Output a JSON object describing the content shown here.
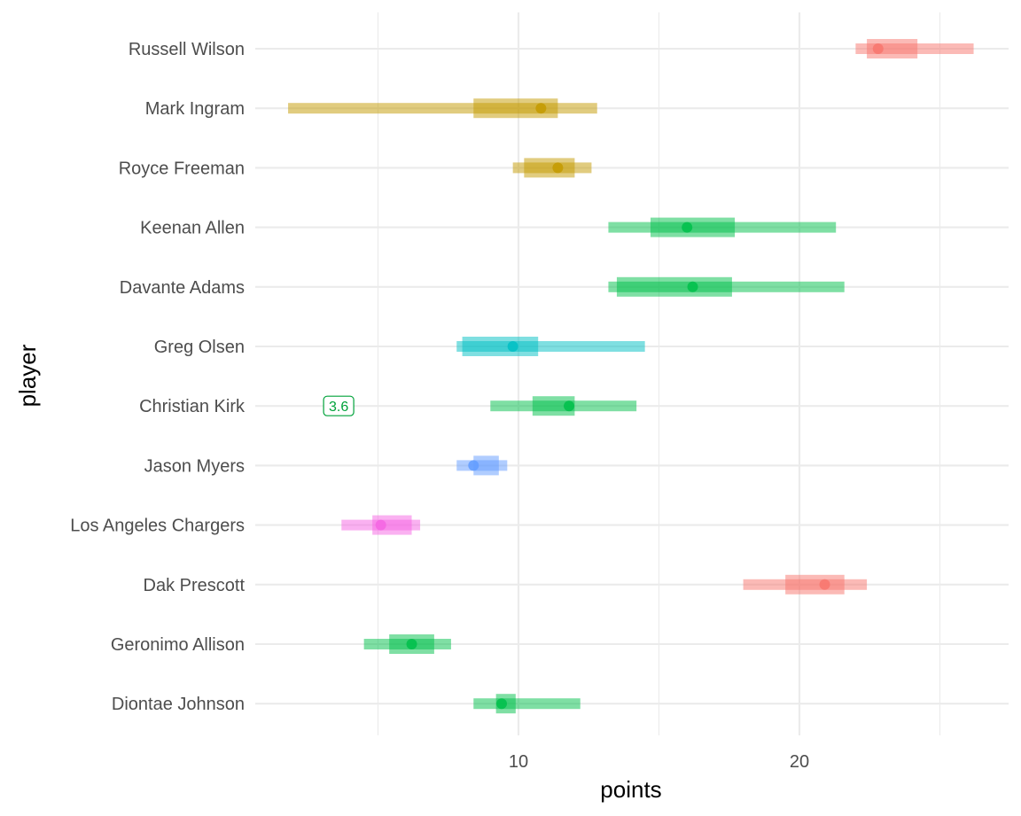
{
  "chart_data": {
    "type": "interval",
    "xlabel": "points",
    "ylabel": "player",
    "xlim": [
      0,
      26
    ],
    "x_ticks": [
      10,
      20
    ],
    "grid": true,
    "rows": [
      {
        "player": "Russell Wilson",
        "color": "#F8766D",
        "outer": [
          22.0,
          26.2
        ],
        "inner": [
          22.4,
          24.2
        ],
        "point": 22.8
      },
      {
        "player": "Mark Ingram",
        "color": "#C49A00",
        "outer": [
          1.8,
          12.8
        ],
        "inner": [
          8.4,
          11.4
        ],
        "point": 10.8
      },
      {
        "player": "Royce Freeman",
        "color": "#C49A00",
        "outer": [
          9.8,
          12.6
        ],
        "inner": [
          10.2,
          12.0
        ],
        "point": 11.4
      },
      {
        "player": "Keenan Allen",
        "color": "#00C04A",
        "outer": [
          13.2,
          21.3
        ],
        "inner": [
          14.7,
          17.7
        ],
        "point": 16.0
      },
      {
        "player": "Davante Adams",
        "color": "#00C04A",
        "outer": [
          13.2,
          21.6
        ],
        "inner": [
          13.5,
          17.6
        ],
        "point": 16.2
      },
      {
        "player": "Greg Olsen",
        "color": "#00BFC4",
        "outer": [
          7.8,
          14.5
        ],
        "inner": [
          8.0,
          10.7
        ],
        "point": 9.8
      },
      {
        "player": "Christian Kirk",
        "color": "#00C04A",
        "outer": [
          9.0,
          14.2
        ],
        "inner": [
          10.5,
          12.0
        ],
        "point": 11.8
      },
      {
        "player": "Jason Myers",
        "color": "#619CFF",
        "outer": [
          7.8,
          9.6
        ],
        "inner": [
          8.4,
          9.3
        ],
        "point": 8.4
      },
      {
        "player": "Los Angeles Chargers",
        "color": "#F564E3",
        "outer": [
          3.7,
          6.5
        ],
        "inner": [
          4.8,
          6.2
        ],
        "point": 5.1
      },
      {
        "player": "Dak Prescott",
        "color": "#F8766D",
        "outer": [
          18.0,
          22.4
        ],
        "inner": [
          19.5,
          21.6
        ],
        "point": 20.9
      },
      {
        "player": "Geronimo Allison",
        "color": "#00C04A",
        "outer": [
          4.5,
          7.6
        ],
        "inner": [
          5.4,
          7.0
        ],
        "point": 6.2
      },
      {
        "player": "Diontae Johnson",
        "color": "#00C04A",
        "outer": [
          8.4,
          12.2
        ],
        "inner": [
          9.2,
          9.9
        ],
        "point": 9.4
      }
    ],
    "annotations": [
      {
        "player": "Christian Kirk",
        "x": 3.6,
        "text": "3.6",
        "color": "#00A23A"
      }
    ]
  }
}
